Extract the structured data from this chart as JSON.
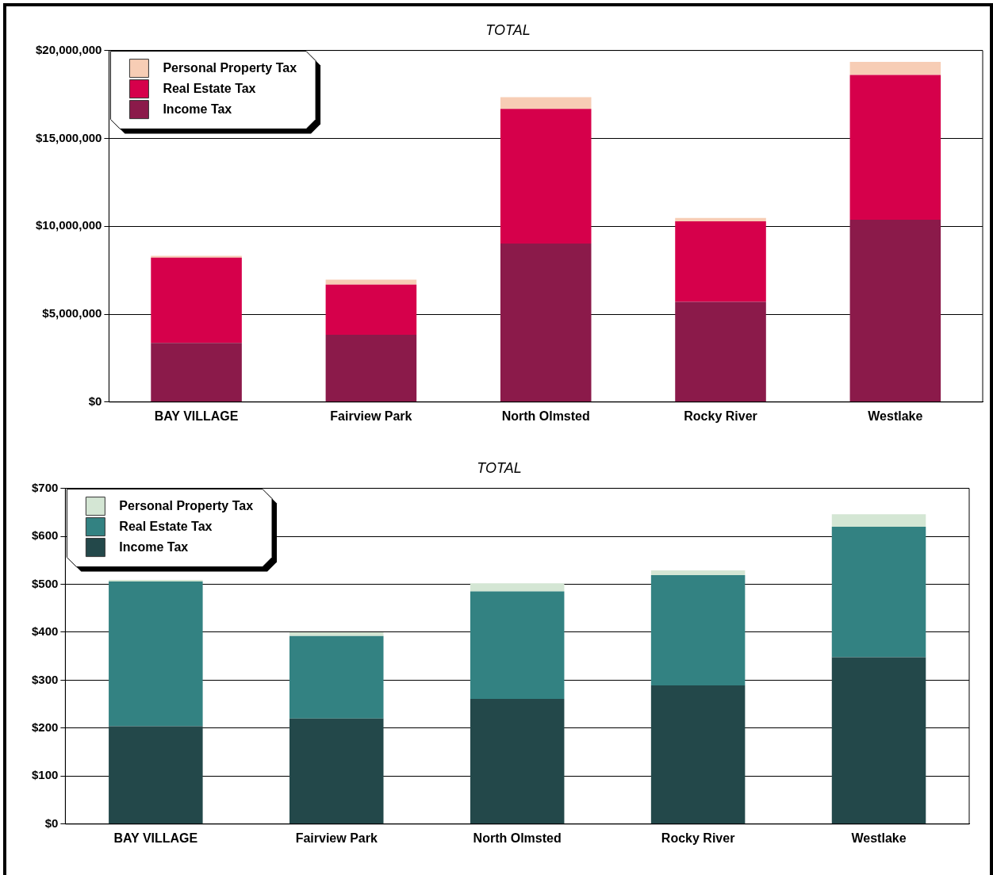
{
  "chart_data": [
    {
      "type": "bar",
      "title": "TOTAL",
      "stacked": true,
      "categories": [
        "BAY VILLAGE",
        "Fairview Park",
        "North Olmsted",
        "Rocky River",
        "Westlake"
      ],
      "series": [
        {
          "name": "Income Tax",
          "color": "#8b1a4a",
          "values": [
            3360000,
            3830000,
            9020000,
            5700000,
            10370000
          ]
        },
        {
          "name": "Real Estate Tax",
          "color": "#d6004b",
          "values": [
            4860000,
            2850000,
            7660000,
            4580000,
            8230000
          ]
        },
        {
          "name": "Personal Property Tax",
          "color": "#f7cdb5",
          "values": [
            100000,
            280000,
            660000,
            190000,
            750000
          ]
        }
      ],
      "ylim": [
        0,
        20000000
      ],
      "yticks": [
        {
          "value": 0,
          "label": "$0"
        },
        {
          "value": 5000000,
          "label": "$5,000,000"
        },
        {
          "value": 10000000,
          "label": "$10,000,000"
        },
        {
          "value": 15000000,
          "label": "$15,000,000"
        },
        {
          "value": 20000000,
          "label": "$20,000,000"
        }
      ],
      "grid": "y",
      "legend": "top left"
    },
    {
      "type": "bar",
      "title": "TOTAL",
      "stacked": true,
      "categories": [
        "BAY VILLAGE",
        "Fairview Park",
        "North Olmsted",
        "Rocky River",
        "Westlake"
      ],
      "series": [
        {
          "name": "Income Tax",
          "color": "#23484a",
          "values": [
            204,
            220,
            261,
            289,
            348
          ]
        },
        {
          "name": "Real Estate Tax",
          "color": "#338282",
          "values": [
            302,
            172,
            224,
            230,
            272
          ]
        },
        {
          "name": "Personal Property Tax",
          "color": "#d4e6d4",
          "values": [
            3,
            8,
            17,
            10,
            26
          ]
        }
      ],
      "ylim": [
        0,
        700
      ],
      "yticks": [
        {
          "value": 0,
          "label": "$0"
        },
        {
          "value": 100,
          "label": "$100"
        },
        {
          "value": 200,
          "label": "$200"
        },
        {
          "value": 300,
          "label": "$300"
        },
        {
          "value": 400,
          "label": "$400"
        },
        {
          "value": 500,
          "label": "$500"
        },
        {
          "value": 600,
          "label": "$600"
        },
        {
          "value": 700,
          "label": "$700"
        }
      ],
      "grid": "y",
      "legend": "top left"
    }
  ]
}
